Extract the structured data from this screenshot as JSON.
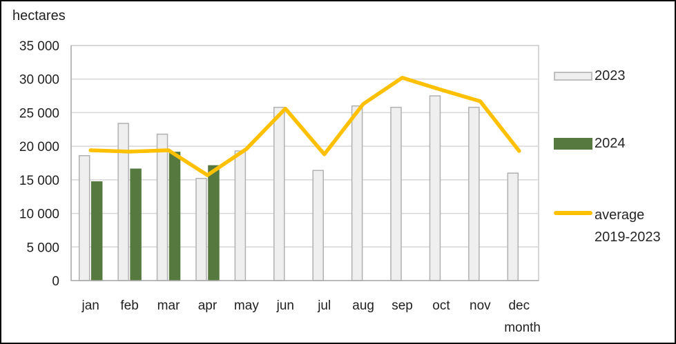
{
  "chart": {
    "axis_top_label": "hectares"
  },
  "legend": {
    "items": [
      {
        "label": "2023"
      },
      {
        "label": "2024"
      },
      {
        "label": "average",
        "label2": "2019-2023"
      }
    ]
  },
  "chart_data": {
    "type": "combo",
    "title": "",
    "ylabel": "hectares",
    "xlabel": "month",
    "categories": [
      "jan",
      "feb",
      "mar",
      "apr",
      "may",
      "jun",
      "jul",
      "aug",
      "sep",
      "oct",
      "nov",
      "dec"
    ],
    "series": [
      {
        "name": "2023",
        "type": "bar",
        "color": "#efefef",
        "border_color": "#b0b0b0",
        "values": [
          18600,
          23400,
          21800,
          15200,
          19300,
          25800,
          16400,
          26000,
          25800,
          27500,
          25800,
          16000
        ]
      },
      {
        "name": "2024",
        "type": "bar",
        "color": "#55793e",
        "border_color": "#55793e",
        "values": [
          14700,
          16600,
          19100,
          17100,
          null,
          null,
          null,
          null,
          null,
          null,
          null,
          null
        ]
      },
      {
        "name": "average 2019-2023",
        "type": "line",
        "color": "#ffc000",
        "values": [
          19400,
          19200,
          19400,
          15700,
          19600,
          25600,
          18800,
          26300,
          30200,
          28400,
          26700,
          19300
        ]
      }
    ],
    "ylim": [
      0,
      35000
    ],
    "ytick_step": 5000,
    "ytick_labels": [
      "0",
      "5 000",
      "10 000",
      "15 000",
      "20 000",
      "25 000",
      "30 000",
      "35 000"
    ],
    "grid": true,
    "legend_position": "right",
    "colors": {
      "gridline": "#d6d6d6",
      "plot_border": "#c9c9c9",
      "axis_line": "#ababab",
      "text": "#1f1f1f"
    }
  }
}
